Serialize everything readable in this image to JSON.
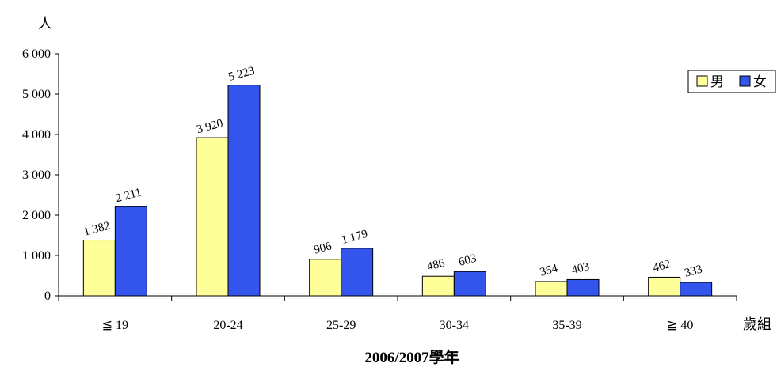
{
  "chart_data": {
    "type": "bar",
    "title": "2006/2007學年",
    "ylabel": "人",
    "xlabel": "歲組",
    "categories": [
      "≦ 19",
      "20-24",
      "25-29",
      "30-34",
      "35-39",
      "≧ 40"
    ],
    "series": [
      {
        "name": "男",
        "color": "#ffff99",
        "values": [
          1382,
          3920,
          906,
          486,
          354,
          462
        ],
        "labels": [
          "1 382",
          "3 920",
          "906",
          "486",
          "354",
          "462"
        ]
      },
      {
        "name": "女",
        "color": "#3355ee",
        "values": [
          2211,
          5223,
          1179,
          603,
          403,
          333
        ],
        "labels": [
          "2 211",
          "5 223",
          "1 179",
          "603",
          "403",
          "333"
        ]
      }
    ],
    "ylim": [
      0,
      6000
    ],
    "yticks": [
      0,
      1000,
      2000,
      3000,
      4000,
      5000,
      6000
    ],
    "ytick_labels": [
      "0",
      "1 000",
      "2 000",
      "3 000",
      "4 000",
      "5 000",
      "6 000"
    ],
    "grid": false,
    "legend_position": "top-right"
  }
}
